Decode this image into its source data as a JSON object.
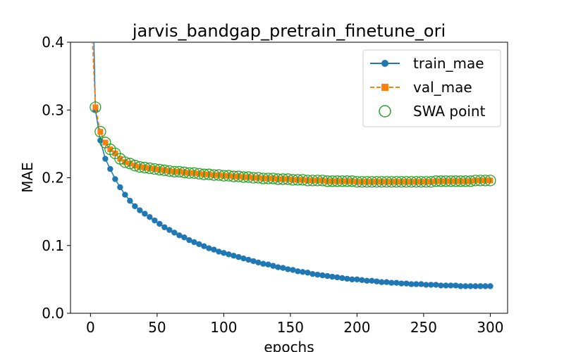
{
  "chart_data": {
    "type": "line",
    "title": "jarvis_bandgap_pretrain_finetune_ori",
    "xlabel": "epochs",
    "ylabel": "MAE",
    "xlim": [
      -15,
      313
    ],
    "ylim": [
      0,
      0.4
    ],
    "xticks": [
      0,
      50,
      100,
      150,
      200,
      250,
      300
    ],
    "yticks": [
      0.0,
      0.1,
      0.2,
      0.3,
      0.4
    ],
    "xtick_labels": [
      "0",
      "50",
      "100",
      "150",
      "200",
      "250",
      "300"
    ],
    "ytick_labels": [
      "0.0",
      "0.1",
      "0.2",
      "0.3",
      "0.4"
    ],
    "grid": false,
    "legend_position": "top-right",
    "legend": [
      "train_mae",
      "val_mae",
      "SWA point"
    ],
    "series": [
      {
        "name": "train_mae",
        "marker": "circle",
        "color": "#1f77b4",
        "values": [
          0.62,
          0.3,
          0.255,
          0.228,
          0.213,
          0.198,
          0.186,
          0.175,
          0.166,
          0.158,
          0.152,
          0.147,
          0.142,
          0.137,
          0.132,
          0.127,
          0.123,
          0.119,
          0.115,
          0.112,
          0.108,
          0.105,
          0.102,
          0.099,
          0.096,
          0.094,
          0.091,
          0.089,
          0.087,
          0.085,
          0.083,
          0.081,
          0.079,
          0.077,
          0.075,
          0.073,
          0.072,
          0.07,
          0.068,
          0.067,
          0.065,
          0.064,
          0.062,
          0.061,
          0.06,
          0.058,
          0.057,
          0.056,
          0.055,
          0.054,
          0.053,
          0.052,
          0.051,
          0.05,
          0.05,
          0.049,
          0.048,
          0.048,
          0.047,
          0.046,
          0.046,
          0.045,
          0.045,
          0.044,
          0.044,
          0.043,
          0.043,
          0.043,
          0.042,
          0.042,
          0.042,
          0.041,
          0.041,
          0.041,
          0.041,
          0.04,
          0.04,
          0.04,
          0.04,
          0.04,
          0.04,
          0.04
        ]
      },
      {
        "name": "val_mae",
        "marker": "square",
        "color": "#ff7f0e",
        "values": [
          0.46,
          0.304,
          0.268,
          0.252,
          0.242,
          0.236,
          0.228,
          0.223,
          0.221,
          0.218,
          0.216,
          0.215,
          0.214,
          0.213,
          0.212,
          0.211,
          0.21,
          0.209,
          0.209,
          0.208,
          0.207,
          0.207,
          0.206,
          0.205,
          0.205,
          0.204,
          0.204,
          0.203,
          0.203,
          0.202,
          0.202,
          0.201,
          0.201,
          0.2,
          0.2,
          0.199,
          0.199,
          0.199,
          0.198,
          0.198,
          0.198,
          0.197,
          0.197,
          0.197,
          0.196,
          0.196,
          0.196,
          0.196,
          0.195,
          0.195,
          0.195,
          0.195,
          0.195,
          0.195,
          0.194,
          0.194,
          0.194,
          0.194,
          0.194,
          0.194,
          0.194,
          0.194,
          0.194,
          0.194,
          0.194,
          0.194,
          0.194,
          0.194,
          0.194,
          0.194,
          0.195,
          0.195,
          0.195,
          0.195,
          0.195,
          0.195,
          0.195,
          0.195,
          0.196,
          0.196,
          0.196,
          0.196
        ]
      },
      {
        "name": "SWA point",
        "marker": "open-circle",
        "color": "#2ca02c",
        "values": []
      }
    ]
  }
}
